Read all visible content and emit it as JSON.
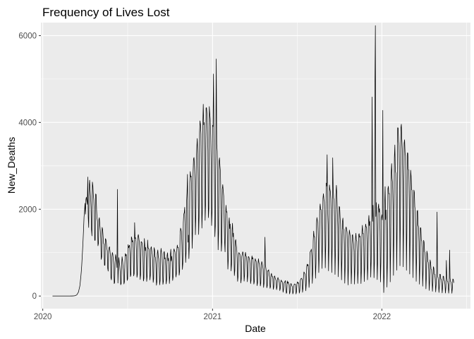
{
  "chart_data": {
    "type": "line",
    "title": "Frequency of Lives Lost",
    "xlabel": "Date",
    "ylabel": "New_Deaths",
    "x_axis_type": "date",
    "xlim": [
      "2019-12-28",
      "2022-07-11"
    ],
    "ylim": [
      -290,
      6300
    ],
    "x_ticks": [
      {
        "value": "2020-01-01",
        "label": "2020"
      },
      {
        "value": "2021-01-01",
        "label": "2021"
      },
      {
        "value": "2022-01-01",
        "label": "2022"
      }
    ],
    "y_ticks": [
      {
        "value": 0,
        "label": "0"
      },
      {
        "value": 2000,
        "label": "2000"
      },
      {
        "value": 4000,
        "label": "4000"
      },
      {
        "value": 6000,
        "label": "6000"
      }
    ],
    "grid": true,
    "line_color": "#000000",
    "series": [
      {
        "x_start": "2020-01-22",
        "x_end": "2022-06-15",
        "values": [
          0,
          0,
          0,
          0,
          0,
          0,
          0,
          0,
          0,
          0,
          0,
          0,
          0,
          0,
          0,
          0,
          0,
          0,
          0,
          0,
          0,
          0,
          0,
          0,
          0,
          0,
          0,
          0,
          0,
          0,
          0,
          0,
          0,
          0,
          0,
          0,
          0,
          0,
          0,
          1,
          2,
          1,
          2,
          1,
          4,
          3,
          3,
          4,
          7,
          12,
          15,
          19,
          25,
          36,
          60,
          72,
          93,
          142,
          187,
          235,
          338,
          439,
          559,
          709,
          906,
          1098,
          1317,
          1559,
          1823,
          1944,
          2137,
          1887,
          2224,
          2278,
          2193,
          2113,
          2743,
          1824,
          1580,
          2530,
          2670,
          2437,
          2296,
          2048,
          1526,
          1387,
          2626,
          2538,
          2325,
          2226,
          1951,
          1282,
          1286,
          2352,
          2342,
          1988,
          1793,
          1720,
          1158,
          1210,
          1759,
          1805,
          1650,
          1512,
          1326,
          844,
          899,
          1581,
          1539,
          1396,
          1211,
          1196,
          709,
          709,
          1322,
          1306,
          1233,
          1105,
          1044,
          641,
          574,
          1036,
          1115,
          1135,
          1022,
          921,
          416,
          373,
          902,
          1003,
          962,
          848,
          734,
          285,
          313,
          784,
          954,
          886,
          812,
          655,
          2457,
          299,
          617,
          886,
          769,
          698,
          548,
          259,
          287,
          721,
          907,
          819,
          692,
          588,
          278,
          324,
          754,
          979,
          927,
          961,
          848,
          359,
          397,
          1185,
          1111,
          1147,
          1173,
          981,
          449,
          493,
          1365,
          1330,
          1245,
          1278,
          1086,
          463,
          513,
          1692,
          1324,
          1346,
          1259,
          1017,
          432,
          494,
          1367,
          1417,
          1347,
          1258,
          1076,
          382,
          490,
          1249,
          1249,
          1221,
          1134,
          924,
          346,
          410,
          1324,
          1167,
          1047,
          1123,
          877,
          337,
          452,
          1290,
          1111,
          1096,
          1081,
          843,
          372,
          480,
          1103,
          1137,
          1036,
          959,
          791,
          315,
          405,
          1116,
          1067,
          907,
          884,
          730,
          249,
          329,
          987,
          1062,
          916,
          858,
          655,
          258,
          358,
          971,
          1099,
          1008,
          933,
          691,
          269,
          331,
          1004,
          1028,
          854,
          881,
          689,
          279,
          373,
          933,
          998,
          815,
          871,
          679,
          289,
          461,
          932,
          1078,
          810,
          916,
          776,
          359,
          439,
          1025,
          1088,
          1037,
          1021,
          885,
          439,
          511,
          1075,
          1174,
          1117,
          1120,
          988,
          480,
          562,
          1405,
          1564,
          1531,
          1487,
          1180,
          613,
          752,
          1688,
          1888,
          1917,
          2045,
          1520,
          773,
          1008,
          2165,
          2390,
          2803,
          1239,
          1404,
          861,
          1178,
          2620,
          2868,
          2744,
          2762,
          2409,
          1100,
          1499,
          2833,
          3155,
          3193,
          3008,
          2667,
          1413,
          1857,
          3136,
          3401,
          3630,
          3313,
          2694,
          1419,
          1830,
          3766,
          4037,
          3944,
          3735,
          2694,
          1566,
          1970,
          3959,
          4419,
          3946,
          3997,
          3360,
          1743,
          2130,
          4332,
          4340,
          4194,
          3797,
          3351,
          1806,
          2011,
          4366,
          4198,
          4078,
          3706,
          3112,
          1625,
          1933,
          3936,
          3904,
          5116,
          3675,
          2898,
          1367,
          1619,
          3293,
          5463,
          3499,
          3337,
          2683,
          1064,
          1479,
          3098,
          3185,
          2996,
          2873,
          2184,
          1032,
          1252,
          2464,
          2568,
          2430,
          2303,
          1792,
          1246,
          1018,
          1880,
          2091,
          1933,
          1945,
          1367,
          620,
          848,
          1670,
          1802,
          1554,
          1658,
          1240,
          578,
          735,
          1517,
          1677,
          1366,
          1449,
          1043,
          471,
          592,
          1264,
          1300,
          1178,
          1101,
          872,
          339,
          451,
          970,
          1002,
          972,
          964,
          766,
          302,
          401,
          909,
          960,
          1019,
          995,
          812,
          343,
          479,
          919,
          1008,
          922,
          910,
          780,
          328,
          476,
          903,
          909,
          873,
          824,
          701,
          287,
          364,
          828,
          926,
          853,
          883,
          678,
          275,
          330,
          786,
          861,
          818,
          805,
          617,
          239,
          309,
          758,
          859,
          767,
          743,
          628,
          232,
          297,
          710,
          794,
          753,
          700,
          609,
          198,
          291,
          676,
          1356,
          710,
          639,
          546,
          190,
          240,
          584,
          577,
          607,
          492,
          438,
          177,
          216,
          487,
          522,
          454,
          455,
          402,
          154,
          214,
          448,
          463,
          413,
          386,
          352,
          147,
          210,
          393,
          427,
          386,
          379,
          300,
          126,
          175,
          329,
          369,
          333,
          333,
          289,
          88,
          152,
          286,
          323,
          328,
          356,
          190,
          61,
          86,
          348,
          294,
          326,
          286,
          260,
          50,
          94,
          251,
          290,
          268,
          234,
          213,
          49,
          88,
          206,
          270,
          280,
          270,
          263,
          48,
          98,
          280,
          328,
          294,
          311,
          267,
          67,
          121,
          346,
          388,
          405,
          409,
          381,
          86,
          188,
          431,
          556,
          532,
          517,
          461,
          121,
          287,
          680,
          735,
          697,
          726,
          559,
          198,
          405,
          997,
          1030,
          1044,
          1080,
          925,
          291,
          557,
          1275,
          1496,
          1367,
          1368,
          1094,
          410,
          752,
          1671,
          1808,
          1735,
          1651,
          1316,
          540,
          958,
          2002,
          2122,
          1993,
          1994,
          1514,
          636,
          1207,
          2245,
          2358,
          2233,
          2176,
          1795,
          649,
          1179,
          2603,
          2535,
          3255,
          1990,
          1651,
          580,
          1161,
          2560,
          2460,
          2406,
          2240,
          1748,
          542,
          1159,
          3185,
          2511,
          2252,
          2228,
          1763,
          497,
          1057,
          2346,
          2552,
          2330,
          1943,
          1582,
          444,
          981,
          2064,
          2050,
          1808,
          1653,
          1331,
          374,
          862,
          1717,
          1796,
          1546,
          1531,
          1209,
          296,
          698,
          1547,
          1592,
          1541,
          1469,
          1106,
          256,
          677,
          1373,
          1520,
          1434,
          1368,
          1077,
          281,
          618,
          1401,
          1415,
          1289,
          1203,
          1028,
          275,
          665,
          1309,
          1447,
          1288,
          1264,
          952,
          290,
          606,
          1409,
          1438,
          1354,
          1384,
          1049,
          288,
          607,
          1468,
          1630,
          1436,
          1441,
          1128,
          335,
          661,
          1487,
          1658,
          1595,
          1584,
          1255,
          374,
          702,
          1680,
          1858,
          1624,
          1717,
          1397,
          436,
          799,
          1780,
          4586,
          1721,
          2092,
          1586,
          421,
          789,
          4730,
          6231,
          1834,
          2153,
          1635,
          380,
          794,
          2034,
          2120,
          1934,
          2013,
          1469,
          325,
          778,
          1804,
          1873,
          1757,
          4278,
          1256,
          81,
          513,
          2101,
          2520,
          1760,
          1983,
          1503,
          207,
          808,
          2468,
          2528,
          2356,
          2363,
          1831,
          326,
          1177,
          2813,
          3052,
          2708,
          2613,
          2082,
          476,
          1497,
          3184,
          3480,
          2876,
          2836,
          2273,
          594,
          1666,
          3878,
          3874,
          3554,
          3475,
          2629,
          699,
          1934,
          3878,
          3958,
          3612,
          3391,
          2644,
          674,
          1774,
          3516,
          3600,
          3302,
          3232,
          2512,
          592,
          1579,
          3299,
          3293,
          2913,
          2907,
          2239,
          507,
          1423,
          2900,
          2767,
          2450,
          2440,
          1904,
          424,
          1163,
          2442,
          2395,
          2055,
          1984,
          1570,
          339,
          905,
          1953,
          1975,
          1636,
          1595,
          1243,
          274,
          703,
          1570,
          1573,
          1293,
          1265,
          1002,
          227,
          579,
          1284,
          1244,
          1022,
          1002,
          782,
          166,
          463,
          1037,
          979,
          798,
          776,
          606,
          129,
          367,
          832,
          778,
          621,
          613,
          470,
          109,
          302,
          676,
          647,
          505,
          500,
          385,
          95,
          258,
          573,
          1936,
          442,
          434,
          329,
          82,
          232,
          503,
          499,
          396,
          383,
          291,
          73,
          210,
          459,
          453,
          363,
          353,
          271,
          69,
          205,
          821,
          432,
          345,
          334,
          255,
          66,
          200,
          1058,
          415,
          335,
          318,
          247,
          64,
          186,
          393,
          383,
          306
        ]
      }
    ]
  }
}
